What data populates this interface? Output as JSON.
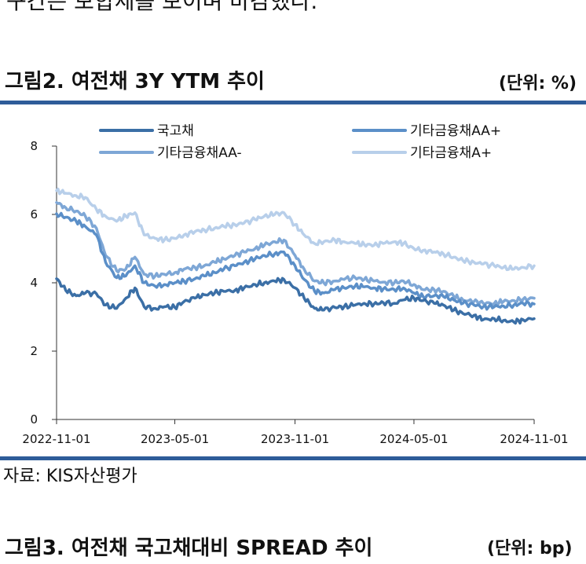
{
  "top_text": "구간은 보합세를 보이며 마감했다.",
  "figure": {
    "title": "그림2. 여전채 3Y YTM 추이",
    "unit": "(단위: %)"
  },
  "source": "자료: KIS자산평가",
  "next_figure": {
    "title": "그림3. 여전채 국고채대비 SPREAD 추이",
    "unit": "(단위: bp)"
  },
  "chart_data": {
    "type": "line",
    "title": "그림2. 여전채 3Y YTM 추이",
    "xlabel": "",
    "ylabel": "",
    "x_ticks": [
      "2022-11-01",
      "2023-05-01",
      "2023-11-01",
      "2024-05-01",
      "2024-11-01"
    ],
    "y_ticks": [
      0,
      2,
      4,
      6,
      8
    ],
    "ylim": [
      0,
      8
    ],
    "xlim": [
      "2022-11-01",
      "2024-11-01"
    ],
    "grid": false,
    "legend_position": "top",
    "x": [
      "2022-11-01",
      "2022-11-15",
      "2022-12-01",
      "2022-12-15",
      "2023-01-01",
      "2023-01-15",
      "2023-02-01",
      "2023-02-15",
      "2023-03-01",
      "2023-03-15",
      "2023-04-01",
      "2023-04-15",
      "2023-05-01",
      "2023-05-15",
      "2023-06-01",
      "2023-06-15",
      "2023-07-01",
      "2023-07-15",
      "2023-08-01",
      "2023-08-15",
      "2023-09-01",
      "2023-09-15",
      "2023-10-01",
      "2023-10-15",
      "2023-11-01",
      "2023-11-15",
      "2023-12-01",
      "2023-12-15",
      "2024-01-01",
      "2024-01-15",
      "2024-02-01",
      "2024-02-15",
      "2024-03-01",
      "2024-03-15",
      "2024-04-01",
      "2024-04-15",
      "2024-05-01",
      "2024-05-15",
      "2024-06-01",
      "2024-06-15",
      "2024-07-01",
      "2024-07-15",
      "2024-08-01",
      "2024-08-15",
      "2024-09-01",
      "2024-09-15",
      "2024-10-01",
      "2024-10-15",
      "2024-11-01"
    ],
    "series": [
      {
        "name": "국고채",
        "color": "#3b6fa6",
        "values": [
          4.12,
          3.78,
          3.62,
          3.7,
          3.68,
          3.35,
          3.25,
          3.55,
          3.85,
          3.3,
          3.25,
          3.3,
          3.28,
          3.45,
          3.55,
          3.65,
          3.7,
          3.75,
          3.78,
          3.85,
          3.95,
          4.0,
          4.05,
          4.1,
          3.85,
          3.55,
          3.25,
          3.2,
          3.28,
          3.3,
          3.35,
          3.4,
          3.38,
          3.42,
          3.4,
          3.5,
          3.55,
          3.48,
          3.4,
          3.35,
          3.2,
          3.1,
          3.05,
          2.92,
          2.95,
          2.9,
          2.85,
          2.92,
          2.95
        ]
      },
      {
        "name": "기타금융채AA+",
        "color": "#5b8fc8",
        "values": [
          6.02,
          5.92,
          5.8,
          5.65,
          5.4,
          4.6,
          4.15,
          4.2,
          4.5,
          4.0,
          3.9,
          3.95,
          4.0,
          4.05,
          4.12,
          4.2,
          4.3,
          4.4,
          4.5,
          4.6,
          4.7,
          4.8,
          4.85,
          4.9,
          4.5,
          4.1,
          3.75,
          3.7,
          3.8,
          3.85,
          3.9,
          3.88,
          3.85,
          3.82,
          3.8,
          3.85,
          3.7,
          3.6,
          3.62,
          3.6,
          3.5,
          3.4,
          3.35,
          3.3,
          3.3,
          3.32,
          3.35,
          3.4,
          3.38
        ]
      },
      {
        "name": "기타금융채AA-",
        "color": "#7ea7d6",
        "values": [
          6.35,
          6.2,
          6.1,
          5.95,
          5.6,
          4.8,
          4.35,
          4.4,
          4.75,
          4.25,
          4.2,
          4.25,
          4.3,
          4.4,
          4.45,
          4.5,
          4.6,
          4.7,
          4.8,
          4.9,
          5.0,
          5.1,
          5.2,
          5.25,
          4.8,
          4.4,
          4.05,
          4.0,
          4.05,
          4.1,
          4.15,
          4.1,
          4.05,
          4.02,
          4.0,
          4.05,
          3.95,
          3.8,
          3.8,
          3.75,
          3.6,
          3.5,
          3.45,
          3.4,
          3.4,
          3.45,
          3.48,
          3.52,
          3.55
        ]
      },
      {
        "name": "기타금융채A+",
        "color": "#b8cfea",
        "values": [
          6.7,
          6.62,
          6.55,
          6.5,
          6.15,
          5.95,
          5.8,
          5.95,
          6.05,
          5.4,
          5.3,
          5.25,
          5.3,
          5.4,
          5.5,
          5.55,
          5.6,
          5.65,
          5.7,
          5.75,
          5.85,
          5.95,
          6.0,
          6.05,
          5.7,
          5.4,
          5.15,
          5.2,
          5.25,
          5.2,
          5.15,
          5.12,
          5.1,
          5.15,
          5.2,
          5.15,
          5.0,
          4.95,
          4.9,
          4.85,
          4.75,
          4.65,
          4.6,
          4.55,
          4.5,
          4.45,
          4.4,
          4.45,
          4.5
        ]
      }
    ]
  }
}
